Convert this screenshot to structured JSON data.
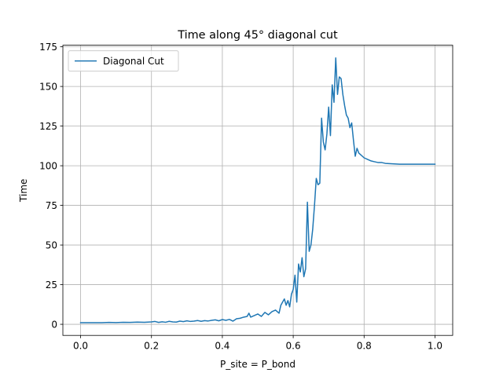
{
  "chart_data": {
    "type": "line",
    "title": "Time along 45° diagonal cut",
    "xlabel": "P_site = P_bond",
    "ylabel": "Time",
    "xlim": [
      -0.05,
      1.05
    ],
    "ylim": [
      -7,
      176
    ],
    "xticks": [
      0.0,
      0.2,
      0.4,
      0.6,
      0.8,
      1.0
    ],
    "xtick_labels": [
      "0.0",
      "0.2",
      "0.4",
      "0.6",
      "0.8",
      "1.0"
    ],
    "yticks": [
      0,
      25,
      50,
      75,
      100,
      125,
      150,
      175
    ],
    "ytick_labels": [
      "0",
      "25",
      "50",
      "75",
      "100",
      "125",
      "150",
      "175"
    ],
    "grid": true,
    "legend_position": "upper-left",
    "colors": {
      "series": "#1f77b4",
      "grid": "#b0b0b0",
      "axes": "#000000"
    },
    "series": [
      {
        "name": "Diagonal Cut",
        "x": [
          0.0,
          0.02,
          0.04,
          0.06,
          0.08,
          0.1,
          0.12,
          0.14,
          0.16,
          0.18,
          0.2,
          0.21,
          0.22,
          0.23,
          0.24,
          0.25,
          0.26,
          0.27,
          0.28,
          0.29,
          0.3,
          0.31,
          0.32,
          0.33,
          0.34,
          0.35,
          0.36,
          0.37,
          0.38,
          0.39,
          0.4,
          0.41,
          0.42,
          0.43,
          0.44,
          0.45,
          0.46,
          0.47,
          0.475,
          0.48,
          0.49,
          0.5,
          0.51,
          0.52,
          0.53,
          0.54,
          0.55,
          0.56,
          0.565,
          0.57,
          0.575,
          0.58,
          0.585,
          0.59,
          0.595,
          0.6,
          0.605,
          0.61,
          0.615,
          0.62,
          0.625,
          0.63,
          0.635,
          0.64,
          0.645,
          0.65,
          0.655,
          0.66,
          0.665,
          0.67,
          0.675,
          0.68,
          0.685,
          0.69,
          0.695,
          0.7,
          0.705,
          0.71,
          0.715,
          0.72,
          0.725,
          0.73,
          0.735,
          0.74,
          0.745,
          0.75,
          0.755,
          0.76,
          0.765,
          0.77,
          0.775,
          0.78,
          0.785,
          0.79,
          0.8,
          0.81,
          0.82,
          0.83,
          0.84,
          0.85,
          0.86,
          0.88,
          0.9,
          0.92,
          0.95,
          1.0
        ],
        "values": [
          1,
          1,
          1,
          1,
          1.2,
          1.1,
          1.3,
          1.2,
          1.4,
          1.3,
          1.5,
          1.8,
          1.2,
          1.6,
          1.3,
          1.9,
          1.5,
          1.4,
          2.0,
          1.7,
          2.2,
          1.8,
          2.0,
          2.4,
          1.9,
          2.3,
          2.1,
          2.5,
          2.8,
          2.2,
          3.0,
          2.5,
          3.1,
          2.0,
          3.5,
          3.8,
          4.5,
          5.0,
          7.0,
          4.5,
          5.5,
          6.5,
          5.0,
          7.5,
          6.0,
          8.0,
          9.0,
          7.0,
          12,
          14,
          16,
          12,
          15,
          11,
          19,
          22,
          31,
          14,
          38,
          33,
          42,
          30,
          35,
          77,
          46,
          50,
          60,
          75,
          92,
          88,
          89,
          130,
          115,
          110,
          120,
          137,
          119,
          151,
          140,
          168,
          145,
          156,
          155,
          145,
          138,
          132,
          130,
          124,
          127,
          116,
          106,
          111,
          108,
          107,
          105,
          104,
          103,
          102.5,
          102,
          102,
          101.5,
          101.2,
          101,
          101,
          101,
          101
        ]
      }
    ]
  }
}
